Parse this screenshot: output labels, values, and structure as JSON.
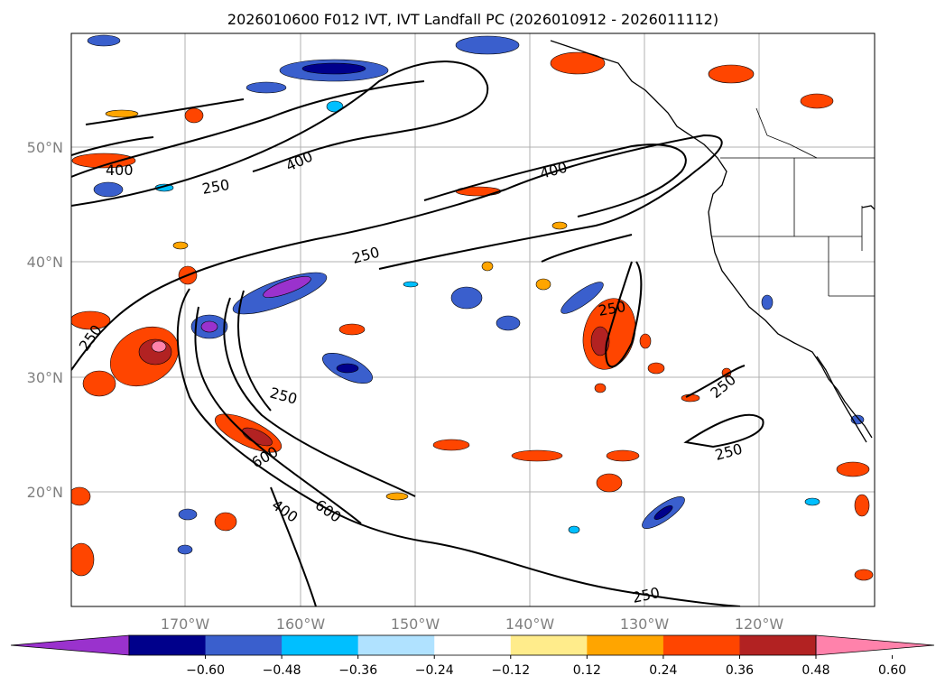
{
  "title": "2026010600 F012 IVT, IVT Landfall PC (2026010912 - 2026011112)",
  "map": {
    "lat_ticks": [
      "50°N",
      "40°N",
      "30°N",
      "20°N"
    ],
    "lon_ticks": [
      "170°W",
      "160°W",
      "150°W",
      "140°W",
      "130°W",
      "120°W"
    ],
    "contour_labels": [
      {
        "id": "c400a",
        "text": "400"
      },
      {
        "id": "c250a",
        "text": "250"
      },
      {
        "id": "c400b",
        "text": "400"
      },
      {
        "id": "c400c",
        "text": "400"
      },
      {
        "id": "c250b",
        "text": "250"
      },
      {
        "id": "c250c",
        "text": "250"
      },
      {
        "id": "c250d",
        "text": "250"
      },
      {
        "id": "c250e",
        "text": "250"
      },
      {
        "id": "c600a",
        "text": "600"
      },
      {
        "id": "c600b",
        "text": "600"
      },
      {
        "id": "c400d",
        "text": "400"
      },
      {
        "id": "c250f",
        "text": "250"
      },
      {
        "id": "c250g",
        "text": "250"
      },
      {
        "id": "c250h",
        "text": "250"
      }
    ]
  },
  "colorbar": {
    "ticks": [
      "−0.60",
      "−0.48",
      "−0.36",
      "−0.24",
      "−0.12",
      "0.12",
      "0.24",
      "0.36",
      "0.48",
      "0.60"
    ],
    "colors": [
      "#9a32cd",
      "#00008b",
      "#3a5fcd",
      "#00bfff",
      "#b0e2ff",
      "#ffffff",
      "#ffec8b",
      "#ffa500",
      "#ff4500",
      "#b22222",
      "#ff82ab"
    ]
  }
}
